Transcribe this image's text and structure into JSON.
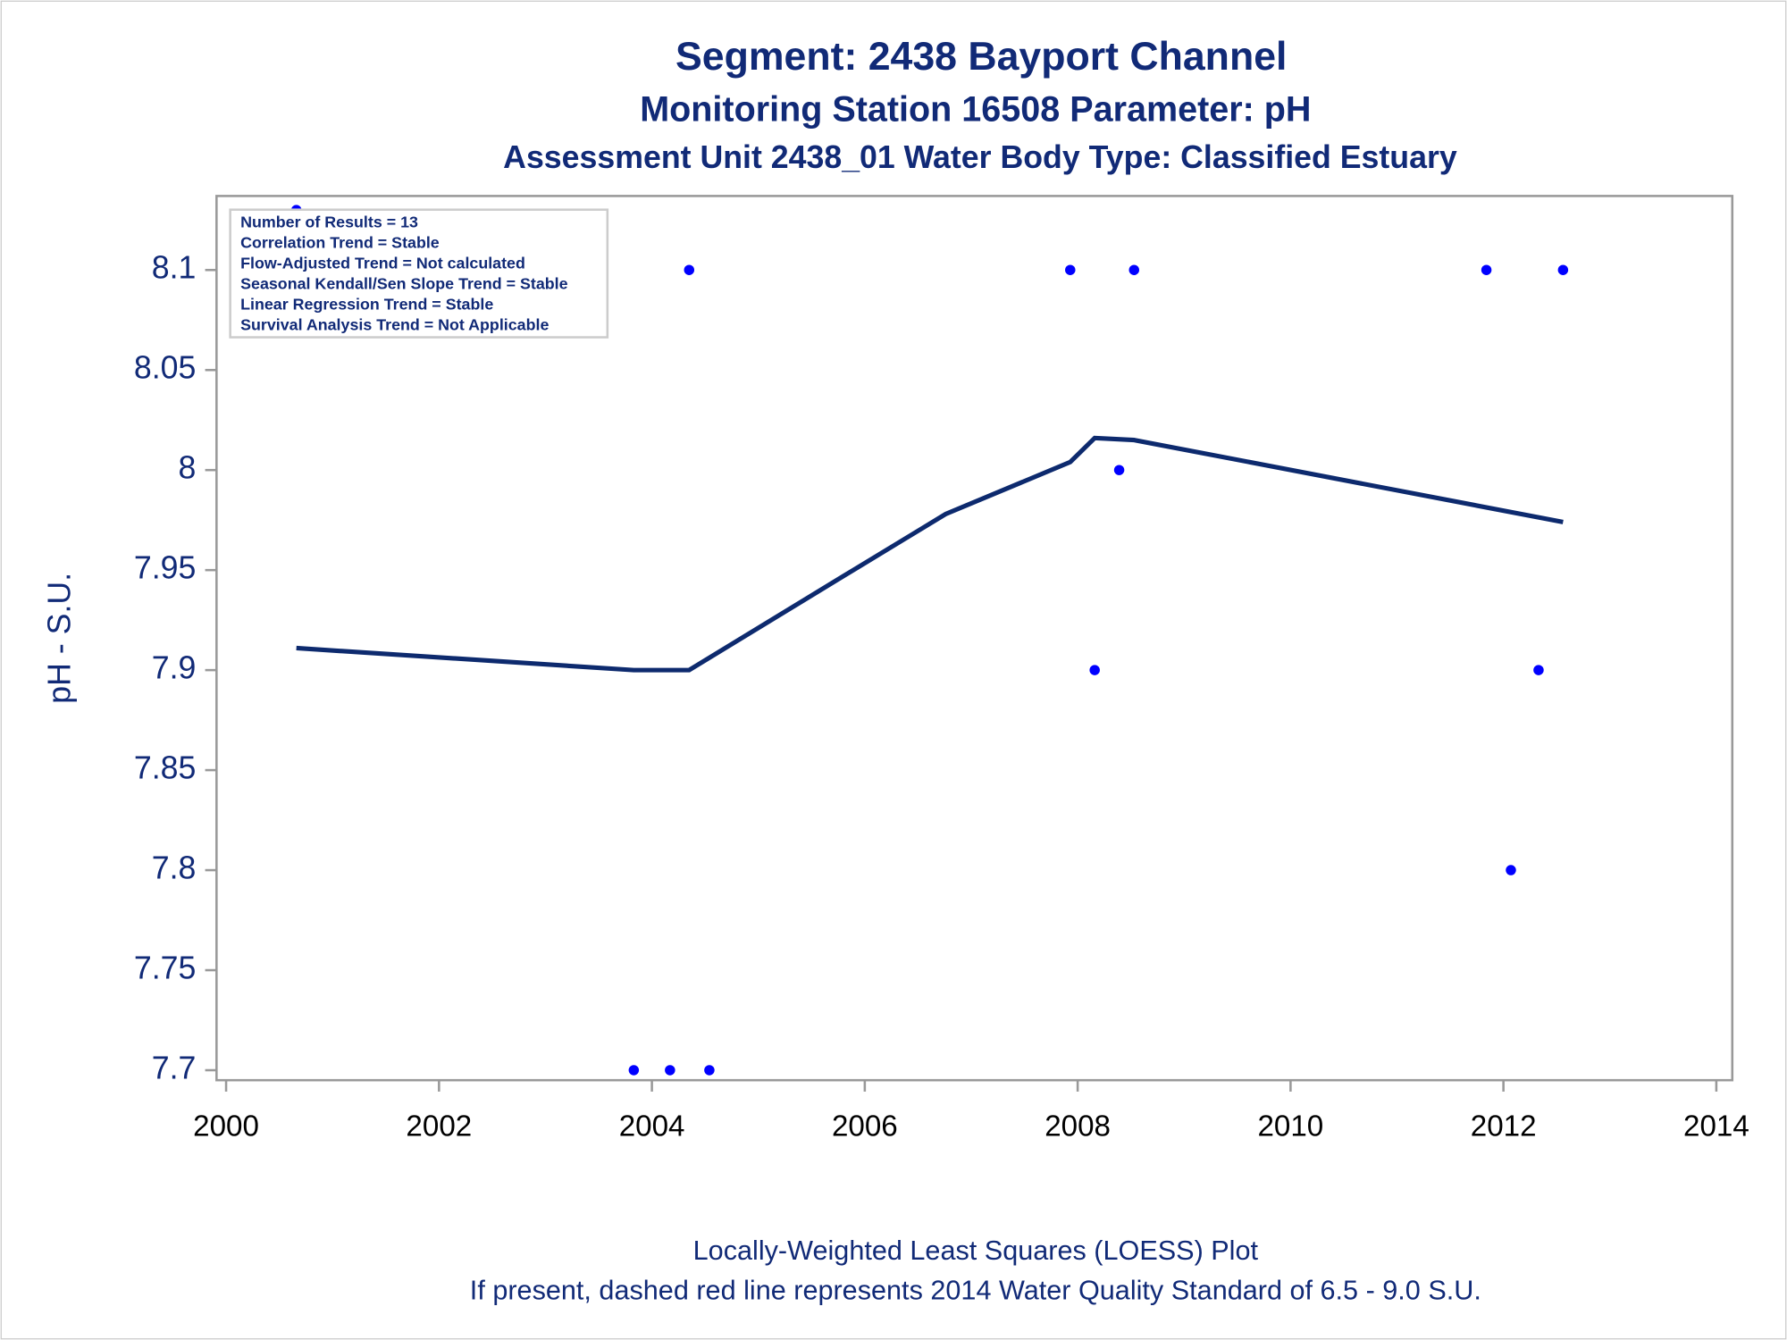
{
  "chart_data": {
    "type": "scatter",
    "title": "Segment: 2438  Bayport Channel",
    "subtitle": "Monitoring Station 16508 Parameter: pH",
    "subtitle2": "Assessment Unit 2438_01   Water Body Type: Classified Estuary",
    "y_label": "pH - S.U.",
    "stats": [
      "Number of Results = 13",
      "Correlation Trend = Stable",
      "Flow-Adjusted Trend = Not calculated",
      "Seasonal Kendall/Sen Slope Trend = Stable",
      "Linear Regression Trend = Stable",
      "Survival Analysis Trend = Not Applicable"
    ],
    "footnotes": [
      "Locally-Weighted Least Squares (LOESS) Plot",
      "If present, dashed red line represents 2014 Water Quality Standard of 6.5 - 9.0 S.U."
    ],
    "xlim": [
      1999.91,
      2014.15
    ],
    "xticks": [
      2000,
      2002,
      2004,
      2006,
      2008,
      2010,
      2012,
      2014
    ],
    "ylim": [
      7.695,
      8.137
    ],
    "yticks": [
      7.7,
      7.75,
      7.8,
      7.85,
      7.9,
      7.95,
      8,
      8.05,
      8.1
    ],
    "grid": false,
    "points": {
      "color": "#0000ff",
      "x": [
        2000.66,
        2003.83,
        2004.17,
        2004.35,
        2004.54,
        2007.93,
        2008.16,
        2008.39,
        2008.53,
        2011.84,
        2012.07,
        2012.33,
        2012.56
      ],
      "y": [
        8.13,
        7.7,
        7.7,
        8.1,
        7.7,
        8.1,
        7.9,
        8.0,
        8.1,
        8.1,
        7.8,
        7.9,
        8.1
      ]
    },
    "loess": {
      "color": "#0d2a6e",
      "x": [
        2000.66,
        2003.83,
        2004.35,
        2005.8,
        2006.76,
        2007.93,
        2008.16,
        2008.53,
        2012.56
      ],
      "y": [
        7.911,
        7.9,
        7.9,
        7.947,
        7.978,
        8.004,
        8.016,
        8.015,
        7.974
      ]
    }
  }
}
